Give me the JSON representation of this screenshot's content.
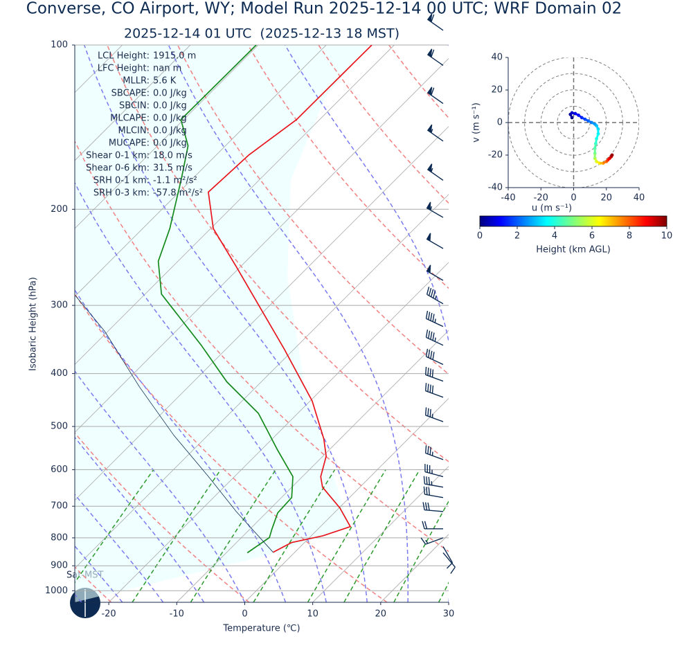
{
  "chart_data": [
    {
      "type": "skewt",
      "title": "Converse, CO Airport, WY; Model Run 2025-12-14 00 UTC; WRF Domain 02",
      "subtitle": "2025-12-14 01 UTC  (2025-12-13 18 MST)",
      "xlabel": "Temperature (℃)",
      "ylabel": "Isobaric Height (hPa)",
      "xlim": [
        -25,
        30
      ],
      "ylim": [
        1050,
        100
      ],
      "ylog": true,
      "xticks": [
        -20,
        -10,
        0,
        10,
        20,
        30
      ],
      "yticks": [
        100,
        200,
        300,
        400,
        500,
        600,
        700,
        800,
        900,
        1000
      ],
      "grid": true,
      "series": [
        {
          "color": "#e8141b",
          "pressure": [
            850,
            816,
            793,
            763,
            705,
            646,
            618,
            567,
            527,
            449,
            361,
            254,
            217,
            186,
            159,
            137,
            100
          ],
          "values": [
            -3.2,
            -1.9,
            1.7,
            4.4,
            0.1,
            -5.5,
            -7.3,
            -9.5,
            -12.4,
            -19.7,
            -31.4,
            -50.8,
            -59.6,
            -65.7,
            -65.2,
            -63.4,
            -63.3
          ]
        },
        {
          "color": "#138a1b",
          "pressure": [
            852,
            799,
            770,
            720,
            675,
            618,
            551,
            473,
            414,
            355,
            286,
            249,
            217,
            176,
            153,
            137,
            100
          ],
          "values": [
            -6.9,
            -5.9,
            -6.8,
            -8.3,
            -8.5,
            -11.4,
            -17.7,
            -25.8,
            -35.1,
            -44.2,
            -57.6,
            -62.9,
            -66.0,
            -71.6,
            -75.5,
            -80.4,
            -80.3
          ]
        },
        {
          "color": "#0d2b52",
          "pressure": [
            850,
            716,
            618,
            519,
            423,
            335,
            288
          ],
          "values": [
            -3.2,
            -14.6,
            -23.8,
            -35.0,
            -47.2,
            -60.4,
            -70.0
          ]
        }
      ],
      "wind": {
        "color": "#0d2b52",
        "pressure": [
          94,
          109,
          128,
          150,
          177,
          207,
          236,
          270,
          298,
          328,
          355,
          385,
          413,
          442,
          490,
          575,
          618,
          646,
          675,
          716,
          770,
          800,
          830,
          852
        ],
        "speed": [
          60,
          60,
          60,
          55,
          55,
          55,
          50,
          50,
          45,
          45,
          45,
          40,
          40,
          40,
          35,
          35,
          35,
          35,
          30,
          30,
          20,
          15,
          10,
          10
        ],
        "direction": [
          305,
          305,
          305,
          305,
          305,
          300,
          300,
          300,
          300,
          295,
          295,
          295,
          290,
          290,
          290,
          290,
          285,
          280,
          280,
          275,
          270,
          250,
          150,
          140
        ]
      },
      "parameters": [
        {
          "label": "LCL Height:",
          "value": "1915.0 m"
        },
        {
          "label": "LFC Height:",
          "value": "nan m"
        },
        {
          "label": "MLLR:",
          "value": "5.6 K"
        },
        {
          "label": "SBCAPE:",
          "value": "0.0 J/kg"
        },
        {
          "label": "SBCIN:",
          "value": "0.0 J/kg"
        },
        {
          "label": "MLCAPE:",
          "value": "0.0 J/kg"
        },
        {
          "label": "MLCIN:",
          "value": "0.0 J/kg"
        },
        {
          "label": "MUCAPE:",
          "value": "0.0 J/kg"
        },
        {
          "label": "Shear 0-1 km:",
          "value": "18.0 m/s"
        },
        {
          "label": "Shear 0-6 km:",
          "value": "31.5 m/s"
        },
        {
          "label": "SRH 0-1 km:",
          "value": "-1.1 m²/s²"
        },
        {
          "label": "SRH 0-3 km:",
          "value": "-57.8 m²/s²"
        }
      ],
      "annotation": "Sat-MST"
    },
    {
      "type": "hodograph",
      "xlabel": "u (m s⁻¹)",
      "ylabel": "v (m s⁻¹)",
      "xlim": [
        -40,
        40
      ],
      "ylim": [
        -40,
        40
      ],
      "xticks": [
        -40,
        -20,
        0,
        20,
        40
      ],
      "yticks": [
        -40,
        -20,
        0,
        20,
        40
      ],
      "u": [
        -1,
        -2,
        -1,
        1,
        3,
        5,
        7,
        9,
        11,
        13,
        14,
        15,
        15,
        14,
        13.5,
        13,
        13,
        13,
        14,
        16,
        18,
        20,
        21,
        22,
        23,
        23.5
      ],
      "v": [
        3,
        5,
        6,
        5.5,
        4.5,
        3,
        2,
        1,
        0,
        -1,
        -2,
        -4,
        -7,
        -10,
        -13,
        -16,
        -19,
        -22,
        -24,
        -25,
        -25,
        -24,
        -23,
        -22,
        -21,
        -20
      ],
      "height": [
        0.0,
        0.3,
        0.6,
        0.9,
        1.2,
        1.5,
        1.8,
        2.1,
        2.4,
        2.7,
        3.0,
        3.3,
        3.6,
        3.9,
        4.2,
        4.5,
        4.8,
        5.2,
        5.8,
        6.4,
        7.0,
        7.6,
        8.2,
        8.8,
        9.3,
        9.7
      ],
      "colorbar_label": "Height (km AGL)",
      "colorbar_lim": [
        0,
        10
      ],
      "colorbar_ticks": [
        0,
        2,
        4,
        6,
        8,
        10
      ]
    }
  ]
}
